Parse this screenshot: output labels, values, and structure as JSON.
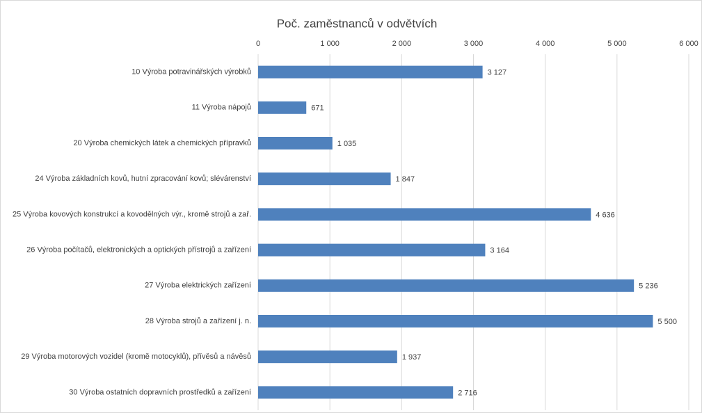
{
  "chart_data": {
    "type": "bar",
    "orientation": "horizontal",
    "title": "Poč. zaměstnanců v odvětvích",
    "categories": [
      "10 Výroba potravinářských výrobků",
      "11 Výroba nápojů",
      "20 Výroba chemických látek a chemických přípravků",
      "24 Výroba základních kovů, hutní zpracování kovů; slévárenství",
      "25 Výroba kovových konstrukcí a kovodělných výr., kromě strojů a zař.",
      "26 Výroba počítačů, elektronických a optických přístrojů a zařízení",
      "27 Výroba elektrických zařízení",
      "28 Výroba strojů a zařízení j. n.",
      "29 Výroba motorových vozidel (kromě motocyklů), přívěsů a návěsů",
      "30 Výroba ostatních dopravních prostředků a zařízení"
    ],
    "values": [
      3127,
      671,
      1035,
      1847,
      4636,
      3164,
      5236,
      5500,
      1937,
      2716
    ],
    "value_labels": [
      "3 127",
      "671",
      "1 035",
      "1 847",
      "4 636",
      "3 164",
      "5 236",
      "5 500",
      "1 937",
      "2 716"
    ],
    "color": "#4f81bd",
    "xlim": [
      0,
      6000
    ],
    "xticks": [
      0,
      {
        "value": 1000,
        "label": "1 000"
      },
      {
        "value": 2000,
        "label": "2 000"
      },
      {
        "value": 3000,
        "label": "3 000"
      },
      {
        "value": 4000,
        "label": "4 000"
      },
      {
        "value": 5000,
        "label": "5 000"
      },
      {
        "value": 6000,
        "label": "6 000"
      }
    ],
    "grid": true
  }
}
